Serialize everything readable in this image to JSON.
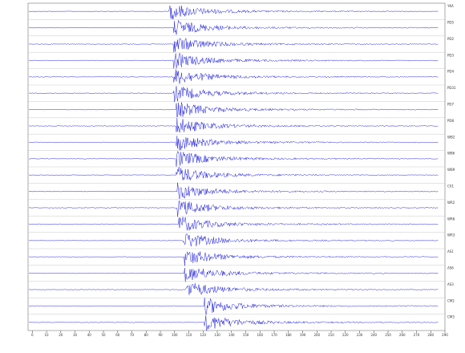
{
  "chart_data": {
    "type": "seismogram",
    "xlim": [
      -3,
      290
    ],
    "xticks": [
      0,
      10,
      20,
      30,
      40,
      50,
      60,
      70,
      80,
      90,
      100,
      110,
      120,
      130,
      140,
      150,
      160,
      170,
      180,
      190,
      200,
      210,
      220,
      230,
      240,
      250,
      260,
      270,
      280,
      290
    ],
    "color": "#1a1adc",
    "traces": [
      {
        "name": "YKA",
        "onset": 96
      },
      {
        "name": "PD5",
        "onset": 99
      },
      {
        "name": "PD2",
        "onset": 99
      },
      {
        "name": "PD3",
        "onset": 99
      },
      {
        "name": "PD4",
        "onset": 99
      },
      {
        "name": "PD31",
        "onset": 99
      },
      {
        "name": "PD7",
        "onset": 101
      },
      {
        "name": "PD8",
        "onset": 101
      },
      {
        "name": "WB2",
        "onset": 101
      },
      {
        "name": "WB6",
        "onset": 101
      },
      {
        "name": "WB9",
        "onset": 101
      },
      {
        "name": "CX1",
        "onset": 102
      },
      {
        "name": "WR2",
        "onset": 102
      },
      {
        "name": "WR6",
        "onset": 103
      },
      {
        "name": "WR3",
        "onset": 106
      },
      {
        "name": "AS1",
        "onset": 107
      },
      {
        "name": "AS6",
        "onset": 107
      },
      {
        "name": "AS3",
        "onset": 108
      },
      {
        "name": "CM2",
        "onset": 121
      },
      {
        "name": "CM3",
        "onset": 121
      }
    ]
  }
}
